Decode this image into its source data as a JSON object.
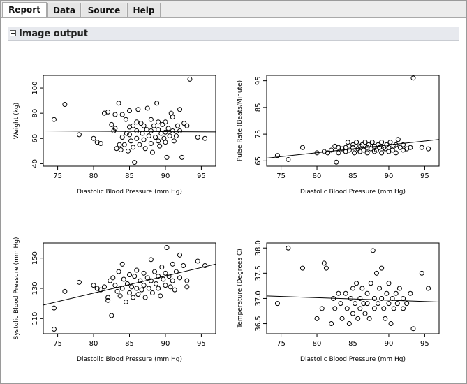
{
  "tabs": [
    {
      "label": "Report",
      "active": true
    },
    {
      "label": "Data",
      "active": false
    },
    {
      "label": "Source",
      "active": false
    },
    {
      "label": "Help",
      "active": false
    }
  ],
  "section": {
    "title": "Image output",
    "toggle_icon": "collapse-minus-icon"
  },
  "chart_data": [
    {
      "type": "scatter",
      "xlabel": "Diastolic Blood Pressure (mm Hg)",
      "ylabel": "Weight (kg)",
      "xlim": [
        73,
        97
      ],
      "ylim": [
        38,
        110
      ],
      "xticks": [
        75,
        80,
        85,
        90,
        95
      ],
      "yticks": [
        40,
        60,
        80,
        100
      ],
      "fit_line": {
        "x": [
          73,
          97
        ],
        "y": [
          66,
          65.2
        ]
      },
      "points": [
        [
          74.5,
          75
        ],
        [
          76,
          87
        ],
        [
          78,
          63
        ],
        [
          80,
          60
        ],
        [
          80.5,
          57
        ],
        [
          81,
          56
        ],
        [
          81.5,
          80
        ],
        [
          82,
          81
        ],
        [
          82.5,
          71
        ],
        [
          82.8,
          66
        ],
        [
          83,
          79
        ],
        [
          83,
          68
        ],
        [
          83.2,
          52
        ],
        [
          83.5,
          88
        ],
        [
          83.6,
          55
        ],
        [
          83.8,
          51
        ],
        [
          84,
          79
        ],
        [
          84,
          61
        ],
        [
          84.3,
          55
        ],
        [
          84.5,
          75
        ],
        [
          84.6,
          64
        ],
        [
          84.8,
          50
        ],
        [
          85,
          82
        ],
        [
          85,
          69
        ],
        [
          85,
          63
        ],
        [
          85.2,
          58
        ],
        [
          85.5,
          70
        ],
        [
          85.5,
          53
        ],
        [
          85.7,
          41
        ],
        [
          86,
          73
        ],
        [
          86,
          66
        ],
        [
          86,
          60
        ],
        [
          86.2,
          83
        ],
        [
          86.4,
          55
        ],
        [
          86.6,
          72
        ],
        [
          86.8,
          64
        ],
        [
          87,
          70
        ],
        [
          87,
          59
        ],
        [
          87.2,
          52
        ],
        [
          87.4,
          67
        ],
        [
          87.5,
          84
        ],
        [
          87.7,
          62
        ],
        [
          88,
          75
        ],
        [
          88,
          66
        ],
        [
          88,
          56
        ],
        [
          88.2,
          49
        ],
        [
          88.4,
          70
        ],
        [
          88.6,
          61
        ],
        [
          88.8,
          88
        ],
        [
          89,
          73
        ],
        [
          89,
          67
        ],
        [
          89,
          58
        ],
        [
          89.2,
          54
        ],
        [
          89.4,
          64
        ],
        [
          89.6,
          71
        ],
        [
          89.8,
          60
        ],
        [
          90,
          73
        ],
        [
          90,
          65
        ],
        [
          90,
          57
        ],
        [
          90.2,
          45
        ],
        [
          90.4,
          68
        ],
        [
          90.6,
          62
        ],
        [
          90.8,
          80
        ],
        [
          91,
          77
        ],
        [
          91,
          66
        ],
        [
          91.2,
          58
        ],
        [
          91.5,
          62
        ],
        [
          91.7,
          70
        ],
        [
          92,
          83
        ],
        [
          92,
          66
        ],
        [
          92.3,
          45
        ],
        [
          92.6,
          72
        ],
        [
          93,
          70
        ],
        [
          93.4,
          107
        ],
        [
          94.5,
          61
        ],
        [
          95.5,
          60
        ]
      ]
    },
    {
      "type": "scatter",
      "xlabel": "Diastolic Blood Pressure (mm Hg)",
      "ylabel": "Pulse Rate (Beats/Minute)",
      "xlim": [
        73,
        97
      ],
      "ylim": [
        63,
        97
      ],
      "xticks": [
        75,
        80,
        85,
        90,
        95
      ],
      "yticks": [
        65,
        75,
        85,
        95
      ],
      "fit_line": {
        "x": [
          73,
          97
        ],
        "y": [
          66,
          73
        ]
      },
      "points": [
        [
          74.5,
          67
        ],
        [
          76,
          65.5
        ],
        [
          78,
          70
        ],
        [
          80,
          68
        ],
        [
          81,
          68.5
        ],
        [
          81.5,
          68
        ],
        [
          82,
          69
        ],
        [
          82.5,
          70.5
        ],
        [
          82.7,
          64.5
        ],
        [
          83,
          70
        ],
        [
          83,
          68
        ],
        [
          83.5,
          69.5
        ],
        [
          84,
          68.5
        ],
        [
          84,
          70
        ],
        [
          84.3,
          72
        ],
        [
          84.5,
          69
        ],
        [
          85,
          70
        ],
        [
          85,
          71
        ],
        [
          85.2,
          68
        ],
        [
          85.5,
          72
        ],
        [
          85.7,
          69.5
        ],
        [
          86,
          70.5
        ],
        [
          86,
          68.5
        ],
        [
          86.3,
          71
        ],
        [
          86.5,
          69
        ],
        [
          86.7,
          72
        ],
        [
          87,
          70
        ],
        [
          87,
          68
        ],
        [
          87.2,
          71
        ],
        [
          87.5,
          69.5
        ],
        [
          87.7,
          72
        ],
        [
          88,
          70.5
        ],
        [
          88,
          68.5
        ],
        [
          88.3,
          69
        ],
        [
          88.5,
          71
        ],
        [
          88.7,
          70
        ],
        [
          89,
          72
        ],
        [
          89,
          68
        ],
        [
          89.3,
          70
        ],
        [
          89.5,
          69.5
        ],
        [
          89.7,
          71
        ],
        [
          90,
          70
        ],
        [
          90,
          68.5
        ],
        [
          90.2,
          72
        ],
        [
          90.5,
          69
        ],
        [
          90.7,
          70.5
        ],
        [
          91,
          71
        ],
        [
          91,
          68
        ],
        [
          91.3,
          73
        ],
        [
          91.6,
          70
        ],
        [
          92,
          69
        ],
        [
          92,
          71
        ],
        [
          92.5,
          69.5
        ],
        [
          93,
          70
        ],
        [
          93.4,
          96
        ],
        [
          94.6,
          70
        ],
        [
          95.5,
          69.5
        ]
      ]
    },
    {
      "type": "scatter",
      "xlabel": "Diastolic Blood Pressure (mm Hg)",
      "ylabel": "Systolic Blood Pressure (mm Hg)",
      "xlim": [
        73,
        97
      ],
      "ylim": [
        100,
        160
      ],
      "xticks": [
        75,
        80,
        85,
        90,
        95
      ],
      "yticks": [
        110,
        130,
        150
      ],
      "fit_line": {
        "x": [
          73,
          97
        ],
        "y": [
          119,
          146
        ]
      },
      "points": [
        [
          74.5,
          117
        ],
        [
          74.5,
          103
        ],
        [
          76,
          128
        ],
        [
          78,
          134
        ],
        [
          80,
          132
        ],
        [
          80.5,
          130
        ],
        [
          81,
          129
        ],
        [
          81.5,
          131
        ],
        [
          82,
          124
        ],
        [
          82,
          122
        ],
        [
          82.3,
          135
        ],
        [
          82.5,
          112
        ],
        [
          82.7,
          137
        ],
        [
          83,
          132
        ],
        [
          83.3,
          128
        ],
        [
          83.5,
          141
        ],
        [
          83.7,
          125
        ],
        [
          84,
          146
        ],
        [
          84,
          130
        ],
        [
          84.2,
          136
        ],
        [
          84.5,
          121
        ],
        [
          84.7,
          133
        ],
        [
          85,
          139
        ],
        [
          85,
          127
        ],
        [
          85.3,
          131
        ],
        [
          85.5,
          124
        ],
        [
          85.7,
          138
        ],
        [
          86,
          142
        ],
        [
          86,
          130
        ],
        [
          86.2,
          126
        ],
        [
          86.5,
          135
        ],
        [
          86.7,
          129
        ],
        [
          87,
          140
        ],
        [
          87,
          132
        ],
        [
          87.2,
          124
        ],
        [
          87.5,
          137
        ],
        [
          87.7,
          130
        ],
        [
          88,
          149
        ],
        [
          88,
          135
        ],
        [
          88.2,
          127
        ],
        [
          88.5,
          141
        ],
        [
          88.7,
          133
        ],
        [
          89,
          138
        ],
        [
          89,
          130
        ],
        [
          89.3,
          125
        ],
        [
          89.5,
          144
        ],
        [
          89.7,
          136
        ],
        [
          90,
          140
        ],
        [
          90,
          132
        ],
        [
          90.2,
          157
        ],
        [
          90.5,
          138
        ],
        [
          90.7,
          131
        ],
        [
          91,
          146
        ],
        [
          91,
          135
        ],
        [
          91.3,
          129
        ],
        [
          91.5,
          141
        ],
        [
          92,
          152
        ],
        [
          92,
          137
        ],
        [
          92.5,
          145
        ],
        [
          93,
          135
        ],
        [
          93,
          131
        ],
        [
          94.5,
          148
        ],
        [
          95.5,
          145
        ]
      ]
    },
    {
      "type": "scatter",
      "xlabel": "Diastolic Blood Pressure (mm Hg)",
      "ylabel": "Temperature (Degrees C)",
      "xlim": [
        73,
        97
      ],
      "ylim": [
        36.3,
        38.1
      ],
      "xticks": [
        75,
        80,
        85,
        90,
        95
      ],
      "yticks": [
        36.5,
        37.0,
        37.5,
        38.0
      ],
      "fit_line": {
        "x": [
          73,
          97
        ],
        "y": [
          37.05,
          36.93
        ]
      },
      "points": [
        [
          74.5,
          36.9
        ],
        [
          76,
          38.0
        ],
        [
          78,
          37.6
        ],
        [
          80,
          36.6
        ],
        [
          80.7,
          36.8
        ],
        [
          81,
          37.7
        ],
        [
          81.3,
          37.6
        ],
        [
          82,
          36.5
        ],
        [
          82.3,
          37.0
        ],
        [
          82.5,
          36.8
        ],
        [
          83,
          37.1
        ],
        [
          83.3,
          36.9
        ],
        [
          83.5,
          36.6
        ],
        [
          84,
          37.1
        ],
        [
          84.2,
          36.8
        ],
        [
          84.5,
          36.5
        ],
        [
          84.7,
          37.0
        ],
        [
          85,
          37.2
        ],
        [
          85,
          36.7
        ],
        [
          85.3,
          36.9
        ],
        [
          85.5,
          37.3
        ],
        [
          85.7,
          36.6
        ],
        [
          86,
          37.0
        ],
        [
          86,
          36.8
        ],
        [
          86.3,
          37.2
        ],
        [
          86.5,
          36.9
        ],
        [
          86.7,
          36.7
        ],
        [
          87,
          37.1
        ],
        [
          87,
          36.9
        ],
        [
          87.3,
          36.6
        ],
        [
          87.5,
          37.3
        ],
        [
          87.8,
          37.95
        ],
        [
          88,
          37.0
        ],
        [
          88,
          36.8
        ],
        [
          88.3,
          37.5
        ],
        [
          88.5,
          36.9
        ],
        [
          88.7,
          37.2
        ],
        [
          89,
          37.6
        ],
        [
          89,
          37.0
        ],
        [
          89.3,
          36.8
        ],
        [
          89.5,
          36.6
        ],
        [
          89.7,
          37.1
        ],
        [
          90,
          36.9
        ],
        [
          90,
          37.3
        ],
        [
          90.3,
          36.5
        ],
        [
          90.5,
          37.0
        ],
        [
          90.7,
          36.8
        ],
        [
          91,
          37.1
        ],
        [
          91.2,
          36.9
        ],
        [
          91.5,
          37.2
        ],
        [
          92,
          37.0
        ],
        [
          92,
          36.8
        ],
        [
          92.5,
          36.9
        ],
        [
          93,
          37.1
        ],
        [
          93.4,
          36.4
        ],
        [
          94.6,
          37.5
        ],
        [
          95.5,
          37.2
        ]
      ]
    }
  ]
}
